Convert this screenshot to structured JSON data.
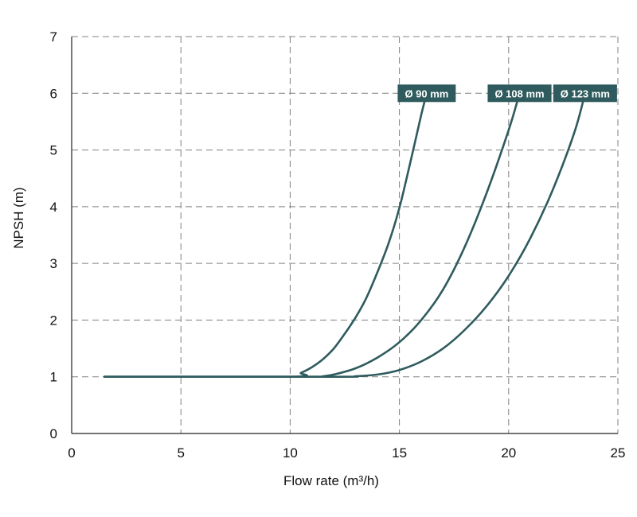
{
  "chart_data": {
    "type": "line",
    "title": "",
    "xlabel": "Flow rate (m³/h)",
    "ylabel": "NPSH (m)",
    "xlim": [
      0,
      25
    ],
    "ylim": [
      0,
      7
    ],
    "xticks": [
      0,
      5,
      10,
      15,
      20,
      25
    ],
    "yticks": [
      0,
      1,
      2,
      3,
      4,
      5,
      6,
      7
    ],
    "grid": true,
    "legend": "inline labels at top of each curve",
    "series_color": "#2f5b5e",
    "series": [
      {
        "name": "Ø 90 mm",
        "x": [
          1.5,
          10.0,
          10.5,
          11.0,
          11.5,
          12.0,
          12.5,
          13.0,
          13.5,
          14.0,
          14.5,
          15.0,
          15.5,
          16.0,
          16.25
        ],
        "y": [
          1.0,
          1.0,
          1.07,
          1.17,
          1.31,
          1.5,
          1.76,
          2.05,
          2.4,
          2.85,
          3.35,
          3.98,
          4.78,
          5.62,
          6.0
        ]
      },
      {
        "name": "Ø 108 mm",
        "x": [
          1.5,
          11.0,
          11.5,
          12.0,
          13.0,
          14.0,
          15.0,
          16.0,
          17.0,
          18.0,
          19.0,
          20.0,
          20.5
        ],
        "y": [
          1.0,
          1.0,
          1.01,
          1.04,
          1.15,
          1.34,
          1.61,
          2.0,
          2.54,
          3.3,
          4.25,
          5.35,
          6.0
        ]
      },
      {
        "name": "Ø 123 mm",
        "x": [
          1.5,
          12.0,
          13.0,
          14.0,
          15.0,
          16.0,
          17.0,
          18.0,
          19.0,
          20.0,
          21.0,
          22.0,
          23.0,
          23.5
        ],
        "y": [
          1.0,
          1.0,
          1.01,
          1.04,
          1.12,
          1.27,
          1.5,
          1.83,
          2.25,
          2.78,
          3.45,
          4.28,
          5.3,
          6.0
        ]
      }
    ]
  }
}
